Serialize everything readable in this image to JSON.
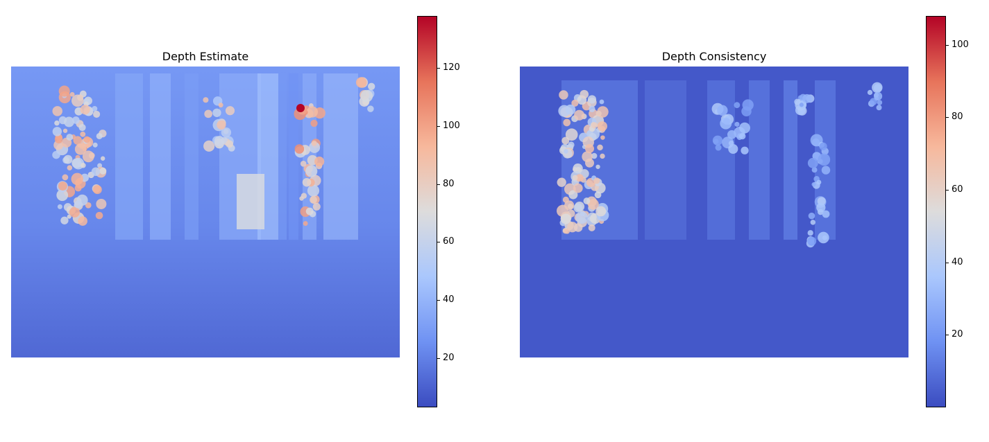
{
  "colormap": {
    "name": "coolwarm",
    "stops": [
      "#3b4cc0",
      "#6f92f3",
      "#aac7fd",
      "#dddcdc",
      "#f7b89c",
      "#e7745b",
      "#b40426"
    ]
  },
  "chart_data": [
    {
      "type": "heatmap",
      "title": "Depth Estimate",
      "colorbar": {
        "min": 3,
        "max": 138,
        "ticks": [
          20,
          40,
          60,
          80,
          100,
          120
        ]
      },
      "background_value": 15,
      "bright_regions": [
        {
          "label": "left cluster",
          "value": 100
        },
        {
          "label": "center column",
          "value": 70
        },
        {
          "label": "right hotspot",
          "value": 138
        },
        {
          "label": "right column",
          "value": 110
        }
      ]
    },
    {
      "type": "heatmap",
      "title": "Depth Consistency",
      "colorbar": {
        "min": 0,
        "max": 108,
        "ticks": [
          20,
          40,
          60,
          80,
          100
        ]
      },
      "background_value": 3,
      "bright_regions": [
        {
          "label": "left cluster",
          "value": 70
        },
        {
          "label": "center column",
          "value": 40
        },
        {
          "label": "right column",
          "value": 40
        }
      ]
    }
  ]
}
